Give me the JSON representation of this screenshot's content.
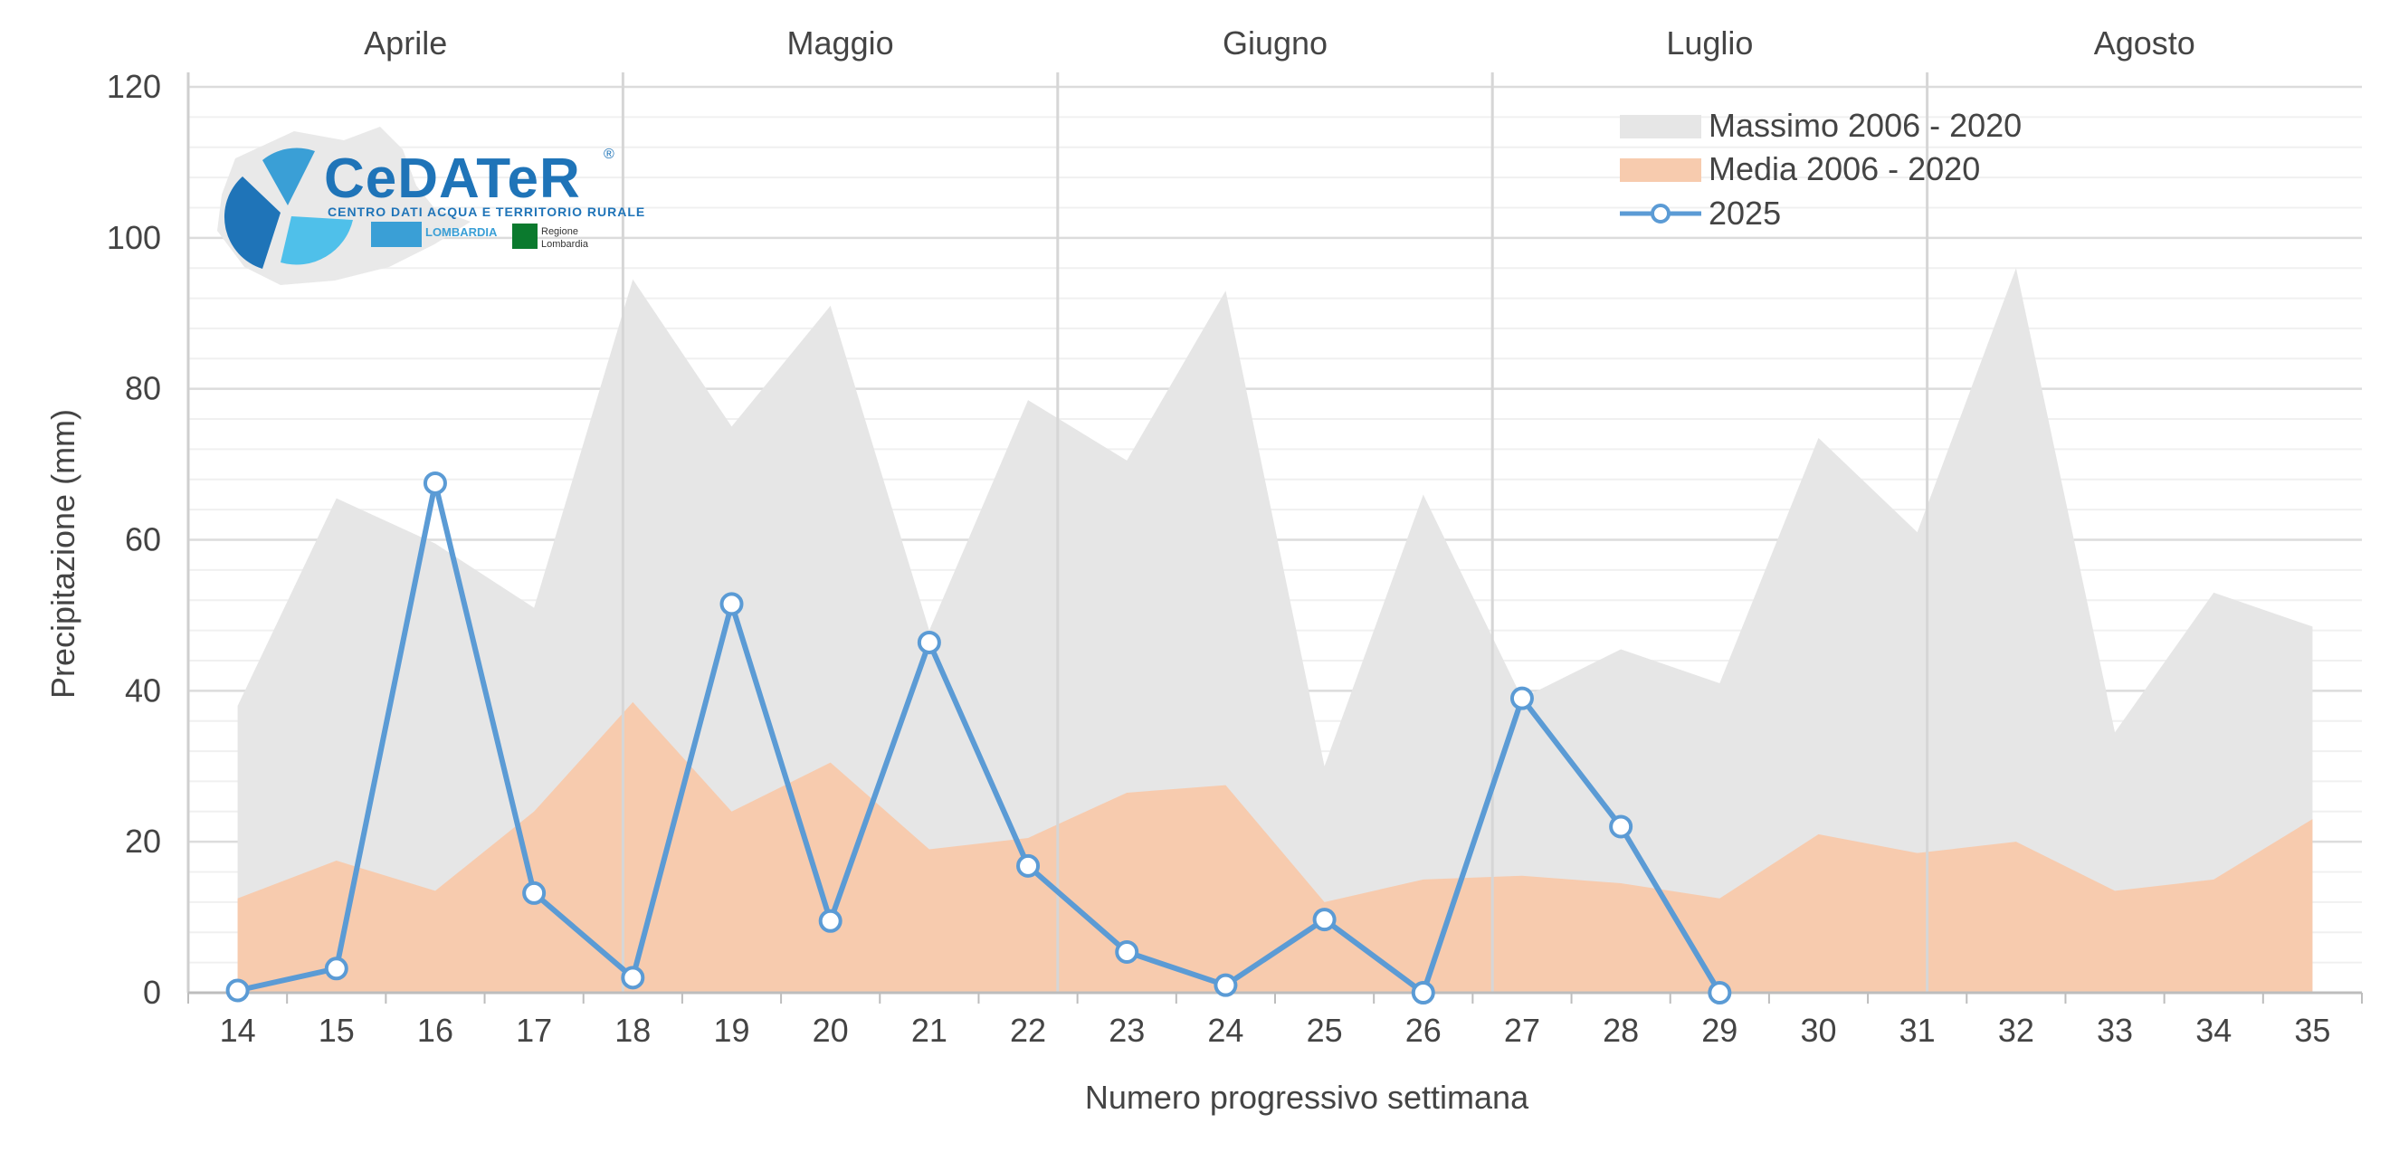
{
  "chart_data": {
    "type": "area",
    "xlabel": "Numero progressivo settimana",
    "ylabel": "Precipitazione (mm)",
    "ylim": [
      0,
      120
    ],
    "yticks": [
      0,
      20,
      40,
      60,
      80,
      100,
      120
    ],
    "xlim": [
      13.5,
      35.5
    ],
    "categories": [
      14,
      15,
      16,
      17,
      18,
      19,
      20,
      21,
      22,
      23,
      24,
      25,
      26,
      27,
      28,
      29,
      30,
      31,
      32,
      33,
      34,
      35
    ],
    "months": [
      {
        "label": "Aprile",
        "start": 13.5,
        "end": 17.9
      },
      {
        "label": "Maggio",
        "start": 17.9,
        "end": 22.3
      },
      {
        "label": "Giugno",
        "start": 22.3,
        "end": 26.7
      },
      {
        "label": "Luglio",
        "start": 26.7,
        "end": 31.1
      },
      {
        "label": "Agosto",
        "start": 31.1,
        "end": 35.5
      }
    ],
    "grid": true,
    "legend_position": "top-right",
    "series": [
      {
        "name": "Massimo 2006 - 2020",
        "kind": "area",
        "color": "#e6e6e6",
        "x": [
          14,
          15,
          16,
          17,
          18,
          19,
          20,
          21,
          22,
          23,
          24,
          25,
          26,
          27,
          28,
          29,
          30,
          31,
          32,
          33,
          34,
          35
        ],
        "values": [
          38,
          65.5,
          59.5,
          51,
          94.5,
          75,
          91,
          48,
          78.5,
          70.5,
          93,
          30,
          66,
          39,
          45.5,
          41,
          73.5,
          61,
          96,
          34.5,
          53,
          48.5
        ]
      },
      {
        "name": "Media 2006 - 2020",
        "kind": "area",
        "color": "#f7cbae",
        "x": [
          14,
          15,
          16,
          17,
          18,
          19,
          20,
          21,
          22,
          23,
          24,
          25,
          26,
          27,
          28,
          29,
          30,
          31,
          32,
          33,
          34,
          35
        ],
        "values": [
          12.5,
          17.5,
          13.5,
          24,
          38.5,
          24,
          30.5,
          19,
          20.5,
          26.5,
          27.5,
          12,
          15,
          15.5,
          14.5,
          12.5,
          21,
          18.5,
          20,
          13.5,
          15,
          23
        ]
      },
      {
        "name": "2025",
        "kind": "line",
        "color": "#5b9bd5",
        "x": [
          14,
          15,
          16,
          17,
          18,
          19,
          20,
          21,
          22,
          23,
          24,
          25,
          26,
          27,
          28,
          29
        ],
        "values": [
          0.3,
          3.2,
          67.5,
          13.2,
          2,
          51.5,
          9.5,
          46.4,
          16.8,
          5.4,
          1,
          9.7,
          0,
          39,
          22,
          0
        ]
      }
    ]
  },
  "logo": {
    "name": "CeDATeR",
    "registered": "®",
    "subtitle": "CENTRO DATI ACQUA E TERRITORIO RURALE",
    "partner1": "LOMBARDIA",
    "partner2_line1": "Regione",
    "partner2_line2": "Lombardia",
    "colors": {
      "dark": "#1f74b8",
      "mid": "#3a9fd6",
      "light": "#4fc0ea"
    }
  }
}
